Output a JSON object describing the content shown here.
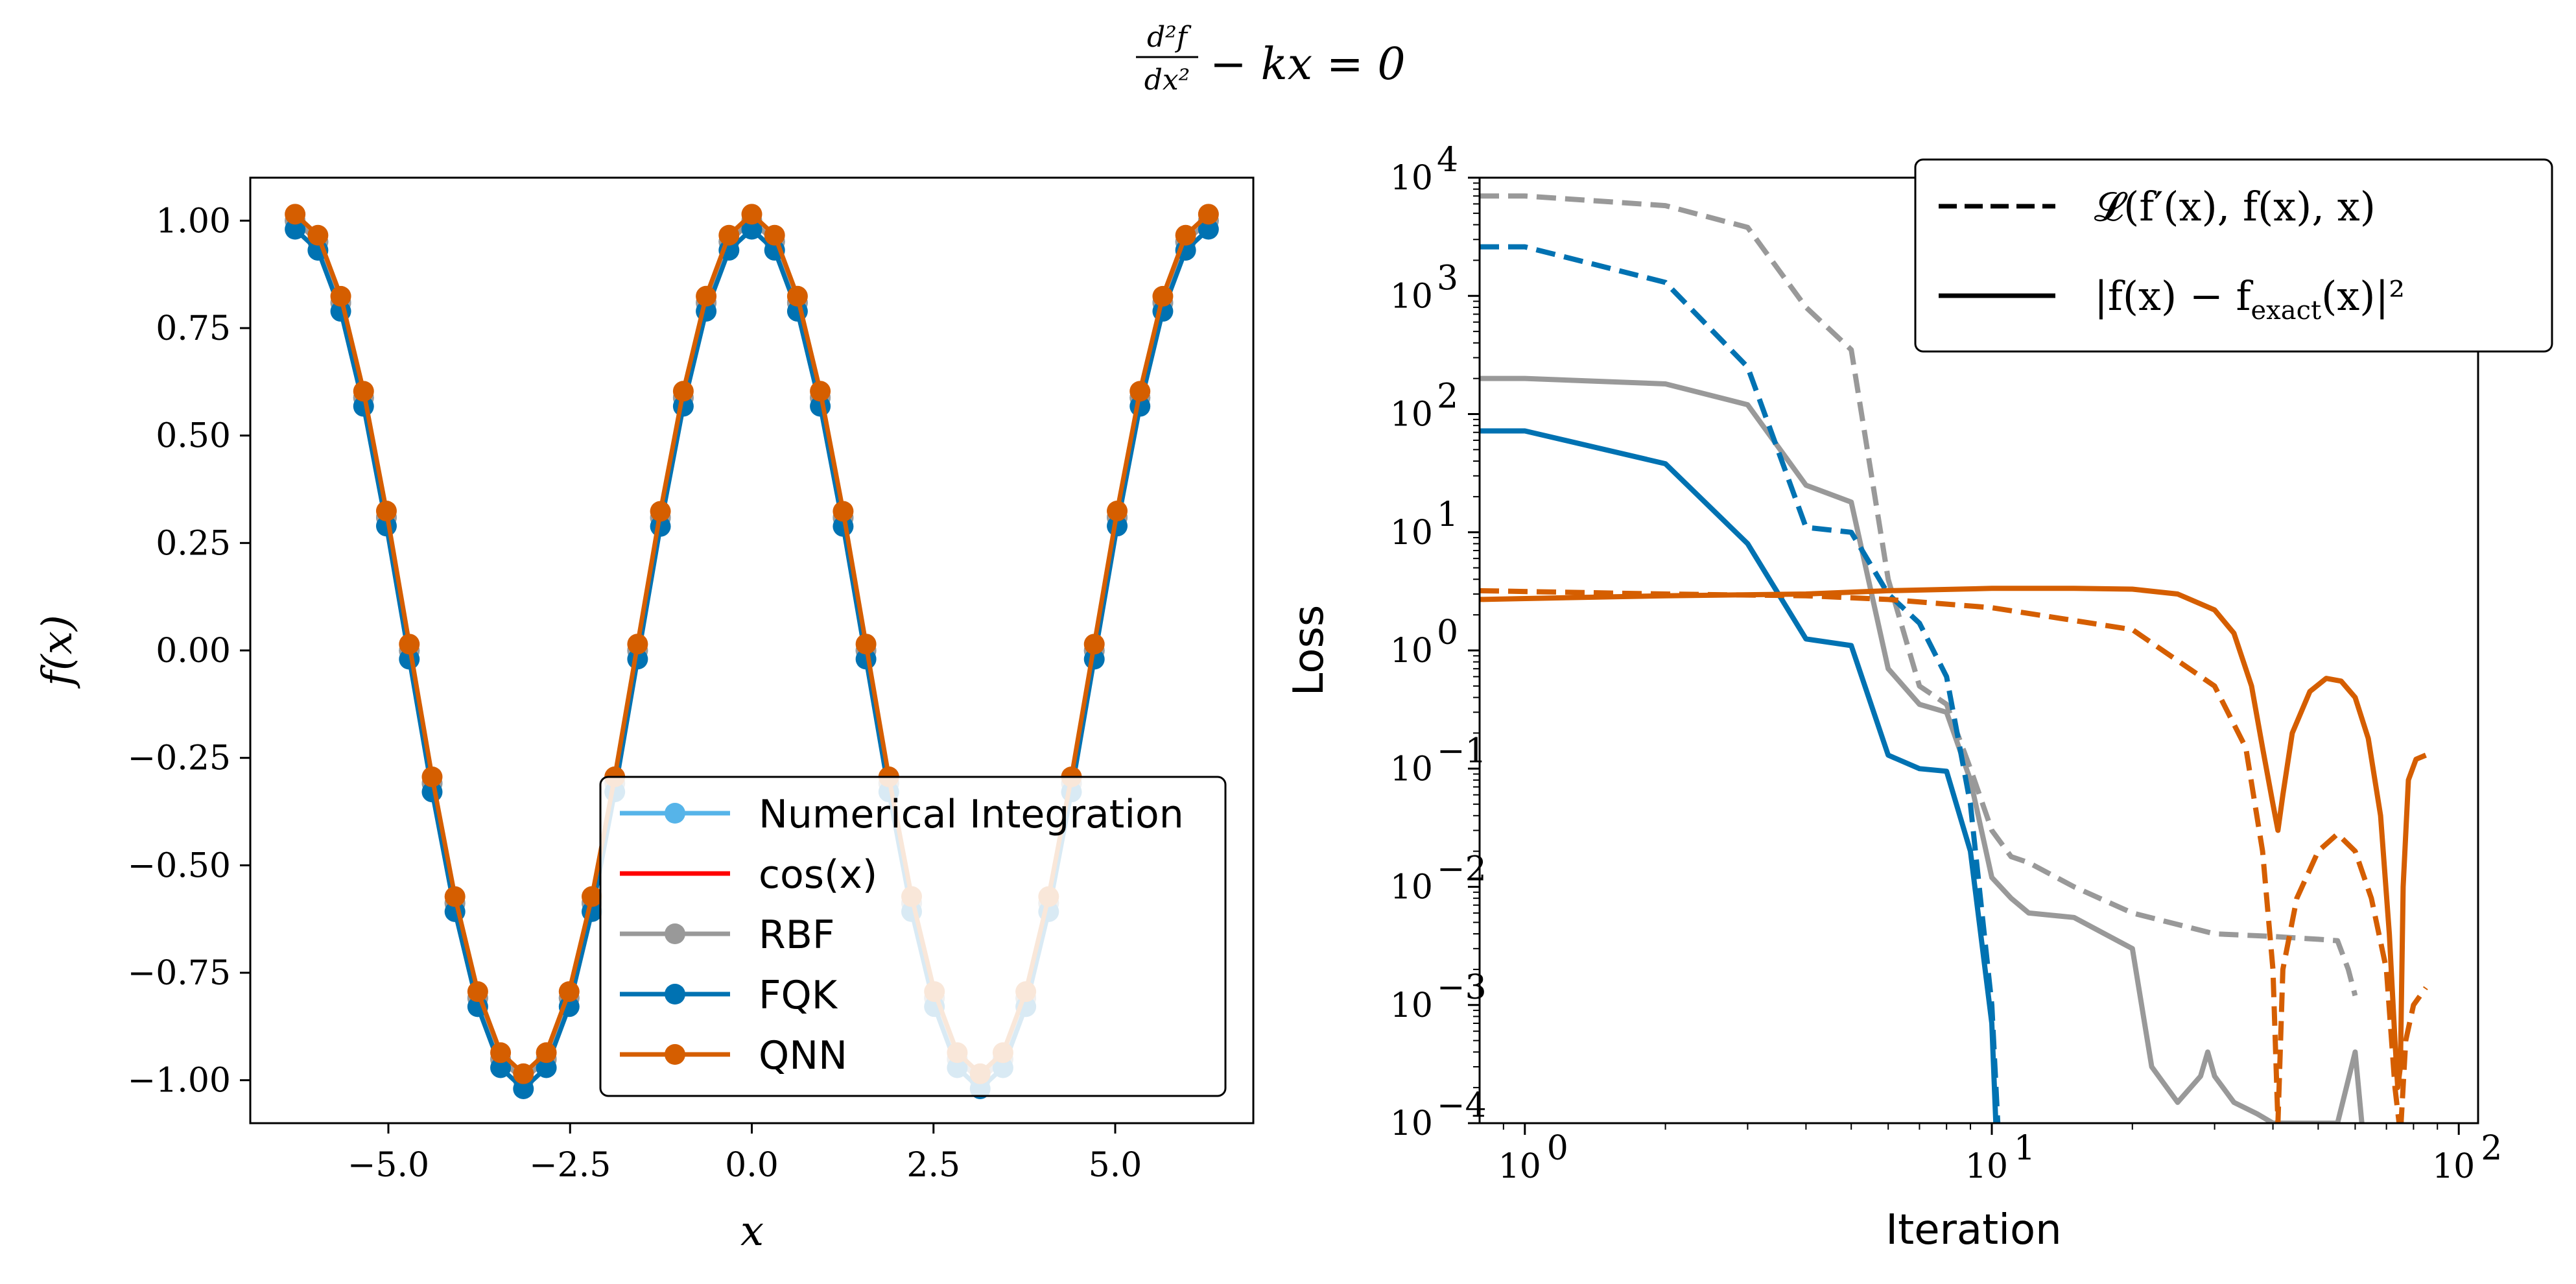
{
  "figure": {
    "suptitle_frac_num": "d²f",
    "suptitle_frac_den": "dx²",
    "suptitle_rest": "− kx = 0"
  },
  "chart_data": [
    {
      "type": "line",
      "title": "",
      "xlabel": "x",
      "ylabel": "f(x)",
      "xlim": [
        -6.9,
        6.9
      ],
      "ylim": [
        -1.1,
        1.1
      ],
      "xticks": [
        -5.0,
        -2.5,
        0.0,
        2.5,
        5.0
      ],
      "xtick_labels": [
        "−5.0",
        "−2.5",
        "0.0",
        "2.5",
        "5.0"
      ],
      "yticks": [
        1.0,
        0.75,
        0.5,
        0.25,
        0.0,
        -0.25,
        -0.5,
        -0.75,
        -1.0
      ],
      "ytick_labels": [
        "1.00",
        "0.75",
        "0.50",
        "0.25",
        "0.00",
        "−0.25",
        "−0.50",
        "−0.75",
        "−1.00"
      ],
      "grid": false,
      "legend_placement": "lower-right",
      "x": [
        -6.283,
        -5.969,
        -5.655,
        -5.341,
        -5.027,
        -4.712,
        -4.398,
        -4.084,
        -3.77,
        -3.456,
        -3.142,
        -2.827,
        -2.513,
        -2.199,
        -1.885,
        -1.571,
        -1.257,
        -0.942,
        -0.628,
        -0.314,
        0.0,
        0.314,
        0.628,
        0.942,
        1.257,
        1.571,
        1.885,
        2.199,
        2.513,
        2.827,
        3.142,
        3.456,
        3.77,
        4.084,
        4.398,
        4.712,
        5.027,
        5.341,
        5.655,
        5.969,
        6.283
      ],
      "series": [
        {
          "name": "Numerical Integration",
          "color": "#56B4E9",
          "marker": true
        },
        {
          "name": "cos(x)",
          "color": "#FF0000",
          "marker": false
        },
        {
          "name": "RBF",
          "color": "#999999",
          "marker": true
        },
        {
          "name": "FQK",
          "color": "#0072B2",
          "marker": true
        },
        {
          "name": "QNN",
          "color": "#D55E00",
          "marker": true
        }
      ],
      "values_note_fn": "cos"
    },
    {
      "type": "line",
      "title": "",
      "xlabel": "Iteration",
      "ylabel": "Loss",
      "xscale": "log",
      "yscale": "log",
      "xlim": [
        0.8,
        110
      ],
      "ylim": [
        0.0001,
        10000
      ],
      "xticks": [
        1,
        10,
        100
      ],
      "yticks": [
        10000,
        1000,
        100,
        10,
        1,
        0.1,
        0.01,
        0.001,
        0.0001
      ],
      "grid": false,
      "legend_placement": "upper-right",
      "legend": [
        {
          "style": "dashed",
          "label_main": "𝓛(f′(x), f(x), x)"
        },
        {
          "style": "solid",
          "label_main": "|f(x) − f",
          "label_sub": "exact",
          "label_tail": "(x)|²"
        }
      ],
      "series": [
        {
          "color": "#999999",
          "style": "dashed",
          "x": [
            0.8,
            1,
            2,
            3,
            4,
            5,
            6,
            7,
            8,
            9,
            10,
            11,
            12,
            15,
            20,
            30,
            40,
            50,
            55,
            58,
            60
          ],
          "y": [
            7000,
            7000,
            5800,
            3800,
            800,
            350,
            4,
            0.5,
            0.35,
            0.1,
            0.03,
            0.018,
            0.016,
            0.01,
            0.006,
            0.004,
            0.0038,
            0.0036,
            0.0035,
            0.002,
            0.0012
          ]
        },
        {
          "color": "#999999",
          "style": "solid",
          "x": [
            0.8,
            1,
            2,
            3,
            4,
            5,
            6,
            7,
            8,
            9,
            10,
            11,
            12,
            15,
            20,
            22,
            25,
            28,
            29,
            30,
            33,
            37,
            40,
            50,
            55,
            60,
            62
          ],
          "y": [
            200,
            200,
            180,
            120,
            25,
            18,
            0.7,
            0.35,
            0.3,
            0.08,
            0.012,
            0.008,
            0.006,
            0.0055,
            0.003,
            0.0003,
            0.00015,
            0.00025,
            0.0004,
            0.00025,
            0.00015,
            0.00012,
            0.0001,
            0.0001,
            0.0001,
            0.0004,
            0.0001
          ]
        },
        {
          "color": "#0072B2",
          "style": "dashed",
          "x": [
            0.8,
            1,
            2,
            3,
            4,
            5,
            6,
            7,
            8,
            9,
            10,
            10.3
          ],
          "y": [
            2600,
            2600,
            1300,
            250,
            11,
            10,
            3,
            1.7,
            0.6,
            0.05,
            0.001,
            0.0001
          ]
        },
        {
          "color": "#0072B2",
          "style": "solid",
          "x": [
            0.8,
            1,
            2,
            3,
            4,
            5,
            6,
            7,
            8,
            9,
            10,
            10.2
          ],
          "y": [
            72,
            72,
            38,
            8,
            1.25,
            1.1,
            0.13,
            0.1,
            0.095,
            0.02,
            0.0007,
            0.0001
          ]
        },
        {
          "color": "#D55E00",
          "style": "dashed",
          "x": [
            0.8,
            2,
            4,
            6,
            10,
            20,
            30,
            35,
            38,
            40,
            41,
            42,
            45,
            50,
            55,
            60,
            65,
            70,
            73,
            75,
            77,
            80,
            85
          ],
          "y": [
            3.2,
            3.0,
            2.9,
            2.7,
            2.3,
            1.5,
            0.5,
            0.15,
            0.02,
            0.002,
            0.0001,
            0.002,
            0.008,
            0.02,
            0.028,
            0.02,
            0.008,
            0.002,
            0.0002,
            8e-05,
            0.0005,
            0.001,
            0.0014
          ]
        },
        {
          "color": "#D55E00",
          "style": "solid",
          "x": [
            0.8,
            2,
            4,
            6,
            10,
            15,
            20,
            25,
            30,
            33,
            36,
            38,
            40,
            41,
            42,
            44,
            48,
            52,
            56,
            60,
            64,
            68,
            71,
            73,
            74,
            75,
            76,
            78,
            81,
            85
          ],
          "y": [
            2.7,
            2.9,
            3.0,
            3.2,
            3.35,
            3.35,
            3.3,
            3.0,
            2.2,
            1.4,
            0.5,
            0.15,
            0.05,
            0.03,
            0.06,
            0.2,
            0.45,
            0.58,
            0.55,
            0.4,
            0.18,
            0.04,
            0.004,
            0.0005,
            0.0002,
            0.0003,
            0.01,
            0.08,
            0.12,
            0.13
          ]
        }
      ]
    }
  ]
}
